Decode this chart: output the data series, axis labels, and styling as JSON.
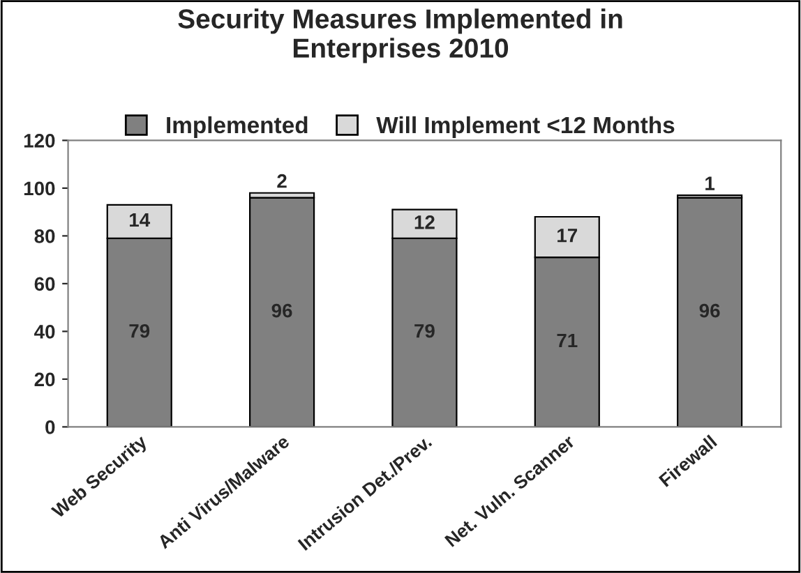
{
  "chart_data": {
    "type": "bar",
    "title": "Security Measures Implemented in\nEnterprises 2010",
    "categories": [
      "Web Security",
      "Anti Virus/Malware",
      "Intrusion Det./Prev.",
      "Net. Vuln. Scanner",
      "Firewall"
    ],
    "series": [
      {
        "name": "Implemented",
        "color": "#808080",
        "values": [
          79,
          96,
          79,
          71,
          96
        ]
      },
      {
        "name": "Will Implement <12 Months",
        "color": "#d9d9d9",
        "values": [
          14,
          2,
          12,
          17,
          1
        ]
      }
    ],
    "stacked": true,
    "ylim": [
      0,
      120
    ],
    "yticks": [
      0,
      20,
      40,
      60,
      80,
      100,
      120
    ],
    "grid": false,
    "legend": "top",
    "data_labels": true
  }
}
